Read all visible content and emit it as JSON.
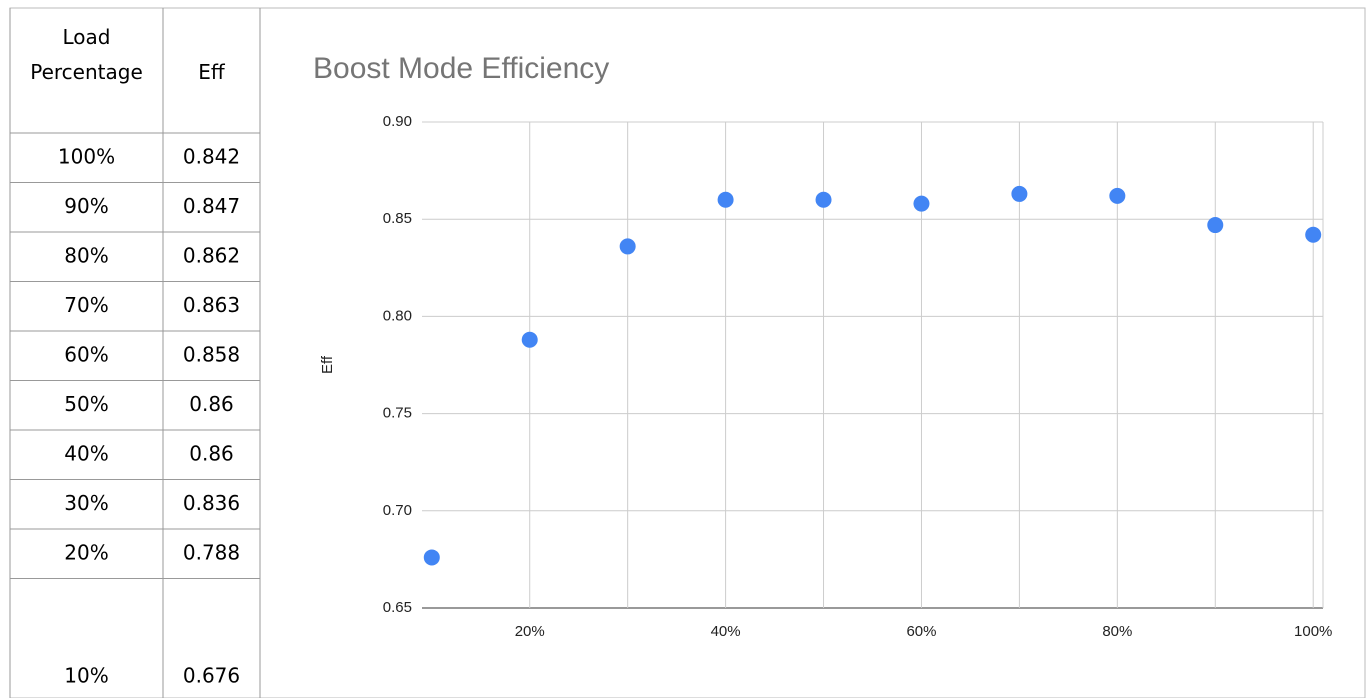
{
  "table": {
    "header": [
      "Load Percentage",
      "Eff"
    ],
    "rows": [
      [
        "100%",
        "0.842"
      ],
      [
        "90%",
        "0.847"
      ],
      [
        "80%",
        "0.862"
      ],
      [
        "70%",
        "0.863"
      ],
      [
        "60%",
        "0.858"
      ],
      [
        "50%",
        "0.86"
      ],
      [
        "40%",
        "0.86"
      ],
      [
        "30%",
        "0.836"
      ],
      [
        "20%",
        "0.788"
      ],
      [
        "10%",
        "0.676"
      ]
    ]
  },
  "chart_data": {
    "type": "scatter",
    "title": "Boost Mode Efficiency",
    "y_label": "Eff",
    "series": [
      {
        "name": "Eff",
        "color": "#4285f4",
        "x": [
          100,
          90,
          80,
          70,
          60,
          50,
          40,
          30,
          20,
          10
        ],
        "values": [
          0.842,
          0.847,
          0.862,
          0.863,
          0.858,
          0.86,
          0.86,
          0.836,
          0.788,
          0.676
        ]
      }
    ],
    "xlim": [
      9,
      101
    ],
    "xticks": [
      {
        "value": 20,
        "label": "20%"
      },
      {
        "value": 40,
        "label": "40%"
      },
      {
        "value": 60,
        "label": "60%"
      },
      {
        "value": 80,
        "label": "80%"
      },
      {
        "value": 100,
        "label": "100%"
      }
    ],
    "x_minor_ticks": [
      30,
      50,
      70,
      90
    ],
    "ylim": [
      0.65,
      0.9
    ],
    "yticks": [
      0.65,
      {
        "value": 0.7,
        "label": "0.70"
      },
      0.75,
      {
        "value": 0.8,
        "label": "0.80"
      },
      0.85,
      {
        "value": 0.9,
        "label": "0.90"
      }
    ],
    "grid": true
  }
}
